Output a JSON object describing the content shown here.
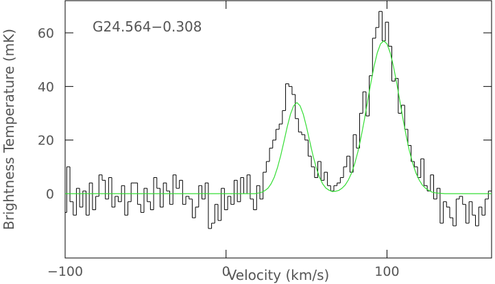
{
  "chart_data": {
    "type": "line",
    "annotation": "G24.564−0.308",
    "x_label": "Velocity (km/s)",
    "y_label": "Brightness Temperature (mK)",
    "xlim": [
      -100,
      165
    ],
    "ylim": [
      -24,
      72
    ],
    "xticks": [
      {
        "value": -100,
        "label": "−100"
      },
      0,
      100
    ],
    "yticks": [
      0,
      20,
      40,
      60
    ],
    "series": [
      {
        "color": "#000000",
        "step": true,
        "x": [
          -100,
          -98,
          -96,
          -94,
          -92,
          -90,
          -88,
          -86,
          -84,
          -82,
          -80,
          -78,
          -76,
          -74,
          -72,
          -70,
          -68,
          -66,
          -64,
          -62,
          -60,
          -58,
          -56,
          -54,
          -52,
          -50,
          -48,
          -46,
          -44,
          -42,
          -40,
          -38,
          -36,
          -34,
          -32,
          -30,
          -28,
          -26,
          -24,
          -22,
          -20,
          -18,
          -16,
          -14,
          -12,
          -10,
          -8,
          -6,
          -4,
          -2,
          0,
          2,
          4,
          6,
          8,
          10,
          12,
          14,
          16,
          18,
          20,
          22,
          24,
          26,
          28,
          30,
          32,
          34,
          36,
          38,
          40,
          42,
          44,
          46,
          48,
          50,
          52,
          54,
          56,
          58,
          60,
          62,
          64,
          66,
          68,
          70,
          72,
          74,
          76,
          78,
          80,
          82,
          84,
          86,
          88,
          90,
          92,
          94,
          96,
          98,
          100,
          102,
          104,
          106,
          108,
          110,
          112,
          114,
          116,
          118,
          120,
          122,
          124,
          126,
          128,
          130,
          132,
          134,
          136,
          138,
          140,
          142,
          144,
          146,
          148,
          150,
          152,
          154,
          156,
          158,
          160,
          162,
          164
        ],
        "values": [
          -7,
          10,
          -3,
          -8,
          2,
          -5,
          1,
          -8,
          4,
          -6,
          -1,
          7,
          5,
          -2,
          6,
          -5,
          -1,
          -3,
          3,
          -8,
          -3,
          4,
          4,
          -4,
          -7,
          2,
          -3,
          -6,
          6,
          2,
          -5,
          4,
          1,
          -4,
          7,
          2,
          5,
          -4,
          -1,
          -2,
          -9,
          -5,
          3,
          -2,
          4,
          -13,
          -11,
          -4,
          -10,
          2,
          -6,
          -1,
          -4,
          5,
          -3,
          6,
          0,
          7,
          -2,
          -6,
          3,
          -2,
          8,
          12,
          17,
          20,
          24,
          26,
          31,
          41,
          40,
          37,
          28,
          23,
          22,
          20,
          14,
          10,
          6,
          12,
          5,
          8,
          3,
          1,
          3,
          4,
          6,
          10,
          14,
          8,
          22,
          17,
          30,
          38,
          29,
          44,
          58,
          62,
          68,
          57,
          64,
          55,
          42,
          43,
          30,
          33,
          24,
          18,
          12,
          10,
          6,
          13,
          3,
          1,
          7,
          -2,
          2,
          -11,
          -3,
          -5,
          -9,
          -12,
          -2,
          -1,
          -4,
          -11,
          -3,
          -8,
          -12,
          -5,
          -8,
          -2,
          1
        ]
      },
      {
        "color": "#33dd33",
        "x": [
          -100,
          18,
          20,
          22,
          24,
          26,
          28,
          30,
          32,
          34,
          36,
          38,
          40,
          42,
          44,
          46,
          48,
          50,
          52,
          54,
          56,
          58,
          60,
          62,
          64,
          66,
          68,
          70,
          72,
          74,
          76,
          78,
          80,
          82,
          84,
          86,
          88,
          90,
          92,
          94,
          96,
          98,
          100,
          102,
          104,
          106,
          108,
          110,
          112,
          114,
          116,
          118,
          120,
          122,
          124,
          126,
          128,
          130,
          132,
          134,
          136,
          165
        ],
        "values": [
          0,
          0,
          0.2,
          0.5,
          1.1,
          2.0,
          3.7,
          6.2,
          9.8,
          14.3,
          19.5,
          24.9,
          29.6,
          32.8,
          34.0,
          32.8,
          29.6,
          24.9,
          19.5,
          14.3,
          9.8,
          6.2,
          3.7,
          2.1,
          1.3,
          0.8,
          0.9,
          1.2,
          2.0,
          3.2,
          5.1,
          7.7,
          11.3,
          15.8,
          21.4,
          27.7,
          34.6,
          41.4,
          47.6,
          52.6,
          55.9,
          57.0,
          55.9,
          52.6,
          47.6,
          41.4,
          34.6,
          27.7,
          21.4,
          15.8,
          11.3,
          7.7,
          5.1,
          3.2,
          2.0,
          1.2,
          0.6,
          0.3,
          0.2,
          0.1,
          0,
          0
        ]
      }
    ]
  }
}
